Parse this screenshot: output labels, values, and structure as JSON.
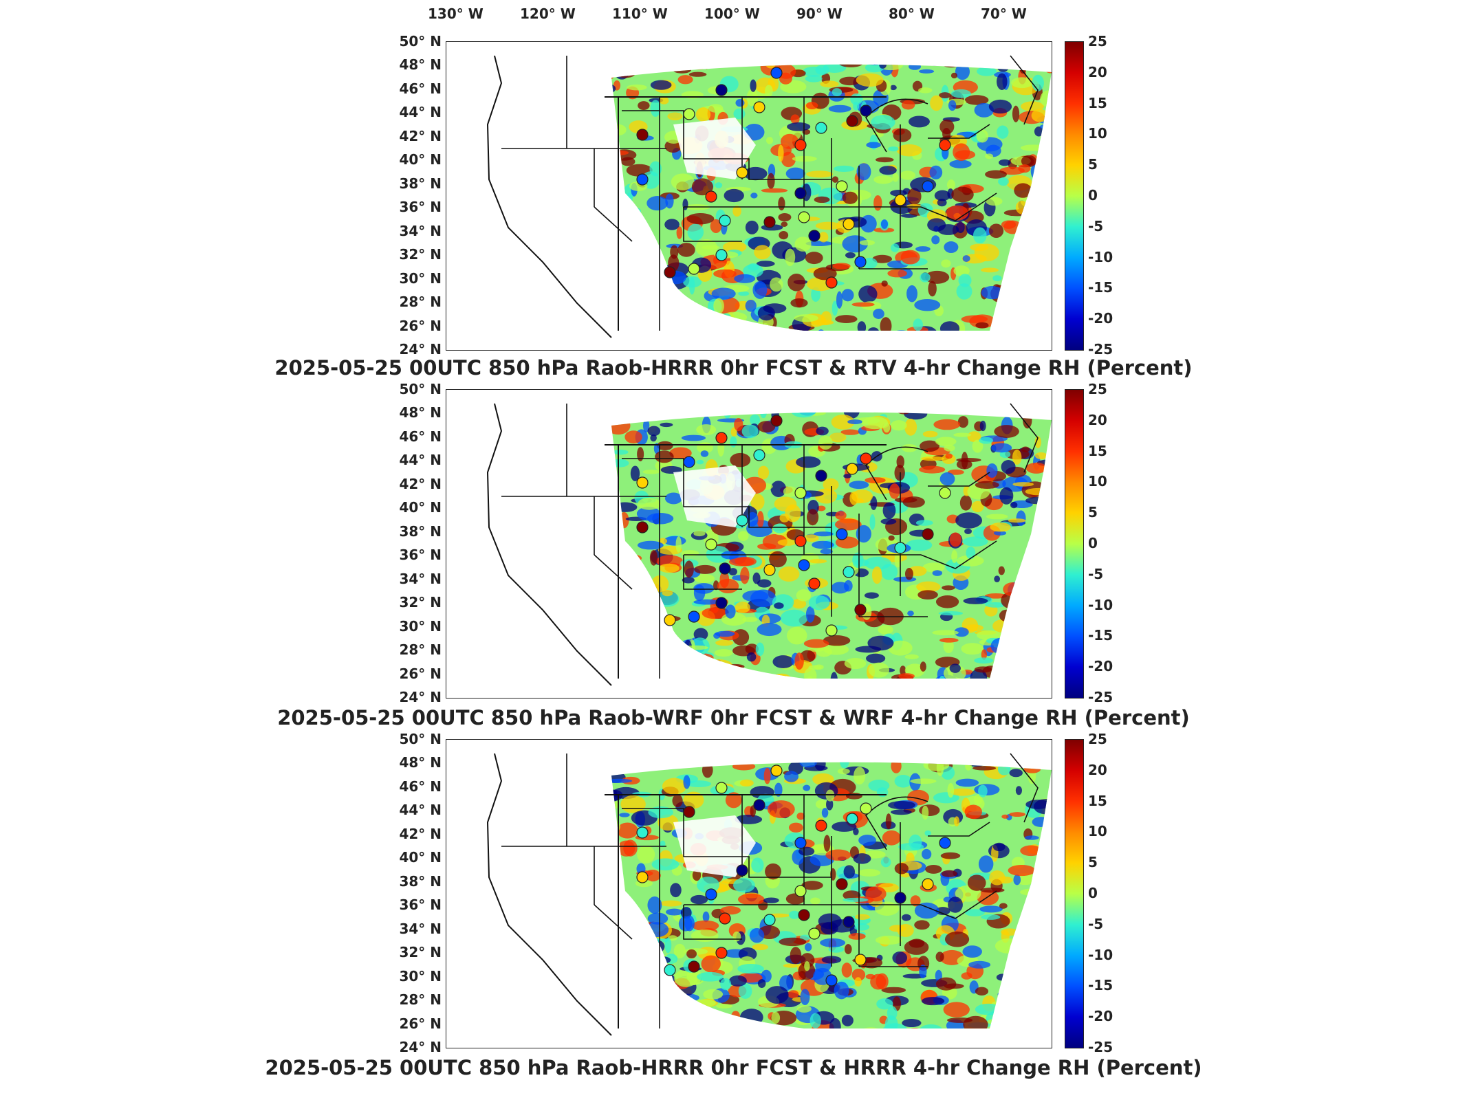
{
  "longitude_labels": [
    "130° W",
    "120° W",
    "110° W",
    "100° W",
    "90° W",
    "80° W",
    "70° W"
  ],
  "latitude_labels": [
    "50° N",
    "48° N",
    "46° N",
    "44° N",
    "42° N",
    "40° N",
    "38° N",
    "36° N",
    "34° N",
    "32° N",
    "30° N",
    "28° N",
    "26° N",
    "24° N"
  ],
  "colorbar": {
    "ticks": [
      "25",
      "20",
      "15",
      "10",
      "5",
      "0",
      "-5",
      "-10",
      "-15",
      "-20",
      "-25"
    ],
    "range": [
      -25,
      25
    ],
    "colormap": "jet",
    "colors": [
      "#7f0000",
      "#ff3000",
      "#ffd200",
      "#b8ff48",
      "#30f0d0",
      "#0050ff",
      "#00007f"
    ]
  },
  "panels": [
    {
      "title": "2025-05-25 00UTC 850 hPa Raob-HRRR 0hr FCST & RTV 4-hr Change RH (Percent)"
    },
    {
      "title": "2025-05-25 00UTC 850 hPa Raob-WRF 0hr FCST & WRF 4-hr Change RH (Percent)"
    },
    {
      "title": "2025-05-25 00UTC 850 hPa Raob-HRRR 0hr FCST & HRRR 4-hr Change RH (Percent)"
    }
  ]
}
